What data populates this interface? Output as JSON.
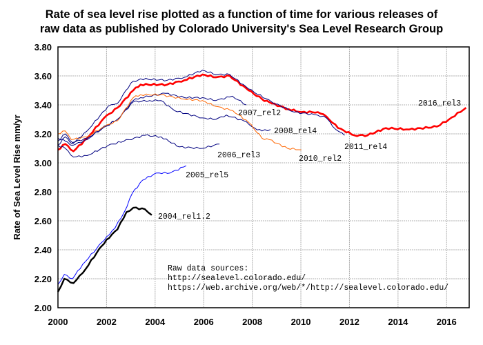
{
  "chart_data": {
    "type": "line",
    "title_lines": [
      "Rate of sea level rise plotted as a function of time for various releases of",
      "raw data as published by Colorado University's Sea Level Research Group"
    ],
    "xlabel": "",
    "ylabel": "Rate of Sea Level Rise mm/yr",
    "xlim": [
      2000,
      2016.93
    ],
    "ylim": [
      2.0,
      3.8
    ],
    "grid": true,
    "x_ticks": [
      2000,
      2002,
      2004,
      2006,
      2008,
      2010,
      2012,
      2014,
      2016
    ],
    "y_ticks": [
      "3.80",
      "3.60",
      "3.40",
      "3.20",
      "3.00",
      "2.80",
      "2.60",
      "2.40",
      "2.20",
      "2.00"
    ],
    "annotation": {
      "lines": [
        "Raw data sources:",
        "http://sealevel.colorado.edu/",
        "https://web.archive.org/web/*/http://sealevel.colorado.edu/"
      ]
    },
    "series": [
      {
        "name": "2016_rel3",
        "color": "#ff0000",
        "width": 2.6,
        "points": [
          [
            2000,
            3.09
          ],
          [
            2000.3,
            3.13
          ],
          [
            2000.64,
            3.08
          ],
          [
            2001.2,
            3.17
          ],
          [
            2001.9,
            3.31
          ],
          [
            2002.45,
            3.38
          ],
          [
            2003.1,
            3.5
          ],
          [
            2003.4,
            3.54
          ],
          [
            2004.5,
            3.54
          ],
          [
            2005.2,
            3.57
          ],
          [
            2005.95,
            3.61
          ],
          [
            2006.5,
            3.59
          ],
          [
            2007.07,
            3.6
          ],
          [
            2007.85,
            3.5
          ],
          [
            2008.4,
            3.44
          ],
          [
            2008.8,
            3.41
          ],
          [
            2009.5,
            3.37
          ],
          [
            2010.02,
            3.35
          ],
          [
            2010.7,
            3.35
          ],
          [
            2011.05,
            3.32
          ],
          [
            2011.53,
            3.24
          ],
          [
            2012.2,
            3.19
          ],
          [
            2012.75,
            3.19
          ],
          [
            2013.5,
            3.24
          ],
          [
            2014.46,
            3.23
          ],
          [
            2015.6,
            3.25
          ],
          [
            2016.1,
            3.3
          ],
          [
            2016.8,
            3.38
          ]
        ]
      },
      {
        "name": "2011_rel4",
        "color": "#000080",
        "width": 1,
        "points": [
          [
            2000,
            3.12
          ],
          [
            2000.3,
            3.18
          ],
          [
            2000.6,
            3.13
          ],
          [
            2001.2,
            3.22
          ],
          [
            2002.06,
            3.39
          ],
          [
            2002.45,
            3.41
          ],
          [
            2003.0,
            3.55
          ],
          [
            2003.4,
            3.58
          ],
          [
            2004.5,
            3.57
          ],
          [
            2005.2,
            3.59
          ],
          [
            2005.95,
            3.64
          ],
          [
            2006.5,
            3.61
          ],
          [
            2007.07,
            3.61
          ],
          [
            2007.85,
            3.51
          ],
          [
            2008.8,
            3.42
          ],
          [
            2009.73,
            3.35
          ],
          [
            2010.68,
            3.33
          ],
          [
            2011.05,
            3.31
          ],
          [
            2011.44,
            3.23
          ],
          [
            2011.8,
            3.19
          ]
        ]
      },
      {
        "name": "2007_rel2",
        "color": "#000080",
        "width": 1,
        "points": [
          [
            2000,
            3.15
          ],
          [
            2000.3,
            3.2
          ],
          [
            2000.6,
            3.14
          ],
          [
            2001.2,
            3.17
          ],
          [
            2001.78,
            3.23
          ],
          [
            2002.45,
            3.3
          ],
          [
            2003.1,
            3.43
          ],
          [
            2003.4,
            3.45
          ],
          [
            2004.43,
            3.48
          ],
          [
            2005.2,
            3.45
          ],
          [
            2005.95,
            3.45
          ],
          [
            2006.5,
            3.43
          ],
          [
            2007.18,
            3.46
          ],
          [
            2007.75,
            3.4
          ]
        ]
      },
      {
        "name": "2008_rel4",
        "color": "#000080",
        "width": 1,
        "points": [
          [
            2000,
            3.17
          ],
          [
            2000.3,
            3.15
          ],
          [
            2000.6,
            3.12
          ],
          [
            2001.2,
            3.16
          ],
          [
            2001.8,
            3.24
          ],
          [
            2002.45,
            3.3
          ],
          [
            2003.1,
            3.42
          ],
          [
            2003.77,
            3.43
          ],
          [
            2004.24,
            3.43
          ],
          [
            2004.8,
            3.36
          ],
          [
            2005.95,
            3.31
          ],
          [
            2006.5,
            3.3
          ],
          [
            2006.93,
            3.33
          ],
          [
            2007.65,
            3.29
          ],
          [
            2008.1,
            3.24
          ],
          [
            2008.4,
            3.22
          ],
          [
            2008.75,
            3.23
          ]
        ]
      },
      {
        "name": "2010_rel2",
        "color": "#ff6600",
        "width": 1,
        "points": [
          [
            2000,
            3.2
          ],
          [
            2000.3,
            3.22
          ],
          [
            2000.55,
            3.16
          ],
          [
            2001.2,
            3.18
          ],
          [
            2001.9,
            3.25
          ],
          [
            2002.45,
            3.29
          ],
          [
            2003.1,
            3.45
          ],
          [
            2003.4,
            3.47
          ],
          [
            2004.24,
            3.47
          ],
          [
            2005.2,
            3.44
          ],
          [
            2005.95,
            3.43
          ],
          [
            2006.5,
            3.39
          ],
          [
            2007.2,
            3.36
          ],
          [
            2007.85,
            3.28
          ],
          [
            2008.4,
            3.17
          ],
          [
            2008.7,
            3.16
          ],
          [
            2009.45,
            3.1
          ],
          [
            2010.02,
            3.09
          ]
        ]
      },
      {
        "name": "2006_rel3",
        "color": "#000080",
        "width": 1,
        "points": [
          [
            2000,
            3.12
          ],
          [
            2000.3,
            3.1
          ],
          [
            2000.64,
            3.04
          ],
          [
            2001.2,
            3.05
          ],
          [
            2002.06,
            3.12
          ],
          [
            2002.92,
            3.16
          ],
          [
            2003.58,
            3.19
          ],
          [
            2004.24,
            3.18
          ],
          [
            2005.0,
            3.11
          ],
          [
            2005.95,
            3.1
          ],
          [
            2006.65,
            3.13
          ]
        ]
      },
      {
        "name": "2005_rel5",
        "color": "#0000ff",
        "width": 1,
        "points": [
          [
            2000,
            2.16
          ],
          [
            2000.26,
            2.23
          ],
          [
            2000.6,
            2.2
          ],
          [
            2001.02,
            2.3
          ],
          [
            2001.6,
            2.41
          ],
          [
            2002.0,
            2.49
          ],
          [
            2002.35,
            2.55
          ],
          [
            2002.73,
            2.66
          ],
          [
            2003.06,
            2.79
          ],
          [
            2003.48,
            2.88
          ],
          [
            2004.05,
            2.93
          ],
          [
            2004.62,
            2.93
          ],
          [
            2005.28,
            2.98
          ]
        ]
      },
      {
        "name": "2004_rel1.2",
        "color": "#000000",
        "width": 2.4,
        "points": [
          [
            2000,
            2.11
          ],
          [
            2000.26,
            2.2
          ],
          [
            2000.64,
            2.17
          ],
          [
            2001.02,
            2.24
          ],
          [
            2001.6,
            2.38
          ],
          [
            2002.0,
            2.47
          ],
          [
            2002.45,
            2.54
          ],
          [
            2002.82,
            2.66
          ],
          [
            2003.1,
            2.69
          ],
          [
            2003.58,
            2.68
          ],
          [
            2003.86,
            2.64
          ]
        ]
      }
    ]
  }
}
